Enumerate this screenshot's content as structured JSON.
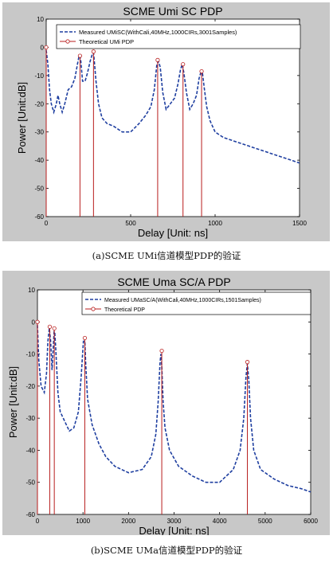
{
  "chart_data": [
    {
      "type": "line",
      "title": "SCME Umi SC PDP",
      "xlabel": "Delay [Unit: ns]",
      "ylabel": "Power [Unit:dB]",
      "xlim": [
        0,
        1500
      ],
      "ylim": [
        -60,
        10
      ],
      "xticks": [
        "0",
        "500",
        "1000",
        "1500"
      ],
      "yticks": [
        "10",
        "0",
        "-10",
        "-20",
        "-30",
        "-40",
        "-50",
        "-60"
      ],
      "xtick_values": [
        0,
        500,
        1000,
        1500
      ],
      "ytick_values": [
        10,
        0,
        -10,
        -20,
        -30,
        -40,
        -50,
        -60
      ],
      "grid": false,
      "legend_position": "top-left",
      "series": [
        {
          "name": "Measured UMiSC(WithCali,40MHz,1000CIRs,3001Samples)",
          "style": "dashed",
          "color": "#1f3fa0",
          "x": [
            0,
            10,
            20,
            30,
            45,
            60,
            70,
            80,
            95,
            110,
            130,
            150,
            170,
            185,
            195,
            200,
            205,
            215,
            230,
            245,
            260,
            275,
            280,
            285,
            295,
            310,
            330,
            360,
            400,
            450,
            500,
            550,
            590,
            620,
            640,
            655,
            665,
            675,
            690,
            710,
            735,
            760,
            780,
            795,
            805,
            815,
            830,
            850,
            870,
            890,
            905,
            915,
            925,
            935,
            950,
            970,
            1000,
            1050,
            1100,
            1150,
            1200,
            1250,
            1300,
            1350,
            1400,
            1450,
            1500
          ],
          "y": [
            -1,
            -6,
            -15,
            -20,
            -23,
            -20,
            -17,
            -20,
            -23,
            -20,
            -15,
            -14,
            -11,
            -6,
            -3,
            -3,
            -5,
            -12,
            -12,
            -9,
            -5,
            -2,
            -2,
            -5,
            -12,
            -20,
            -25,
            -27,
            -28,
            -30,
            -30,
            -27,
            -24,
            -21,
            -15,
            -6,
            -5,
            -7,
            -16,
            -22,
            -20,
            -18,
            -13,
            -8,
            -6,
            -9,
            -16,
            -22,
            -20,
            -17,
            -11,
            -9,
            -9,
            -14,
            -21,
            -26,
            -30,
            -32,
            -33,
            -34,
            -35,
            -36,
            -37,
            -38,
            -39,
            -40,
            -41
          ]
        },
        {
          "name": "Theoretical UMi PDP",
          "style": "stem",
          "color": "#b81d1d",
          "x": [
            0,
            200,
            280,
            660,
            810,
            920
          ],
          "y": [
            0,
            -3,
            -1.5,
            -4.5,
            -6,
            -8.5
          ]
        }
      ]
    },
    {
      "type": "line",
      "title": "SCME Uma SC/A PDP",
      "xlabel": "Delay [Unit: ns]",
      "ylabel": "Power [Unit:dB]",
      "xlim": [
        0,
        6000
      ],
      "ylim": [
        -60,
        10
      ],
      "xticks": [
        "0",
        "1000",
        "2000",
        "3000",
        "4000",
        "5000",
        "6000"
      ],
      "yticks": [
        "10",
        "0",
        "-10",
        "-20",
        "-30",
        "-40",
        "-50",
        "-60"
      ],
      "xtick_values": [
        0,
        1000,
        2000,
        3000,
        4000,
        5000,
        6000
      ],
      "ytick_values": [
        10,
        0,
        -10,
        -20,
        -30,
        -40,
        -50,
        -60
      ],
      "grid": false,
      "legend_position": "top-right",
      "series": [
        {
          "name": "Measured UMaSC/A(WithCali,40MHz,1000CIRs,1501Samples)",
          "style": "dashed",
          "color": "#1f3fa0",
          "x": [
            0,
            30,
            80,
            150,
            200,
            230,
            260,
            290,
            320,
            340,
            365,
            380,
            400,
            450,
            500,
            600,
            700,
            800,
            900,
            960,
            1010,
            1040,
            1060,
            1100,
            1200,
            1350,
            1500,
            1700,
            2000,
            2300,
            2500,
            2600,
            2650,
            2690,
            2710,
            2730,
            2760,
            2800,
            2900,
            3100,
            3400,
            3700,
            4000,
            4300,
            4450,
            4530,
            4580,
            4610,
            4640,
            4680,
            4750,
            4900,
            5200,
            5500,
            5800,
            6000
          ],
          "y": [
            -1,
            -12,
            -20,
            -22,
            -16,
            -6,
            -2,
            -6,
            -15,
            -10,
            -3,
            -3,
            -8,
            -22,
            -28,
            -31,
            -34,
            -33,
            -28,
            -17,
            -6,
            -6,
            -13,
            -24,
            -32,
            -38,
            -42,
            -45,
            -47,
            -46,
            -42,
            -35,
            -25,
            -13,
            -10,
            -14,
            -25,
            -33,
            -40,
            -45,
            -48,
            -50,
            -50,
            -46,
            -40,
            -30,
            -17,
            -13,
            -18,
            -30,
            -40,
            -46,
            -49,
            -51,
            -52,
            -53
          ]
        },
        {
          "name": "Theoretical PDP",
          "style": "stem",
          "color": "#b81d1d",
          "x": [
            0,
            270,
            370,
            1040,
            2730,
            4610
          ],
          "y": [
            0,
            -1.5,
            -2,
            -5,
            -9,
            -12.5
          ]
        }
      ]
    }
  ],
  "captions": [
    "(a)SCME  UMi信道模型PDP的验证",
    "(b)SCME  UMa信道模型PDP的验证"
  ]
}
